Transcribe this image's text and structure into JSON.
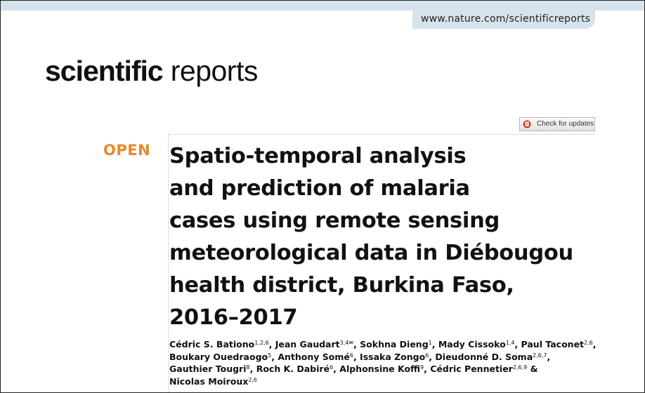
{
  "header": {
    "url": "www.nature.com/scientificreports"
  },
  "journal": {
    "name_bold": "scientific",
    "name_light": "reports"
  },
  "check_updates": {
    "label": "Check for updates"
  },
  "article": {
    "access_label": "OPEN",
    "title_lines": [
      "Spatio-temporal analysis",
      "and prediction of malaria",
      "cases using remote sensing",
      "meteorological data in Diébougou",
      "health district, Burkina Faso,",
      "2016–2017"
    ],
    "authors_lines": [
      [
        {
          "name": "Cédric S. Bationo",
          "sup": "1,2,6",
          "sep": ", "
        },
        {
          "name": "Jean Gaudart",
          "sup": "3,4✉",
          "sep": ", "
        },
        {
          "name": "Sokhna Dieng",
          "sup": "1",
          "sep": ", "
        },
        {
          "name": "Mady Cissoko",
          "sup": "1,4",
          "sep": ", "
        },
        {
          "name": "Paul Taconet",
          "sup": "2,6",
          "sep": ","
        }
      ],
      [
        {
          "name": "Boukary Ouedraogo",
          "sup": "5",
          "sep": ", "
        },
        {
          "name": "Anthony Somé",
          "sup": "6",
          "sep": ", "
        },
        {
          "name": "Issaka Zongo",
          "sup": "6",
          "sep": ", "
        },
        {
          "name": "Dieudonné D. Soma",
          "sup": "2,6,7",
          "sep": ","
        }
      ],
      [
        {
          "name": "Gauthier Tougri",
          "sup": "8",
          "sep": ", "
        },
        {
          "name": "Roch K. Dabiré",
          "sup": "6",
          "sep": ", "
        },
        {
          "name": "Alphonsine Koffi",
          "sup": "9",
          "sep": ", "
        },
        {
          "name": "Cédric Pennetier",
          "sup": "2,6,9",
          "sep": " &"
        }
      ],
      [
        {
          "name": "Nicolas Moiroux",
          "sup": "2,6",
          "sep": ""
        }
      ]
    ]
  },
  "colors": {
    "header_band": "#d5e3ea",
    "open_label": "#e8892a",
    "text": "#111111"
  }
}
